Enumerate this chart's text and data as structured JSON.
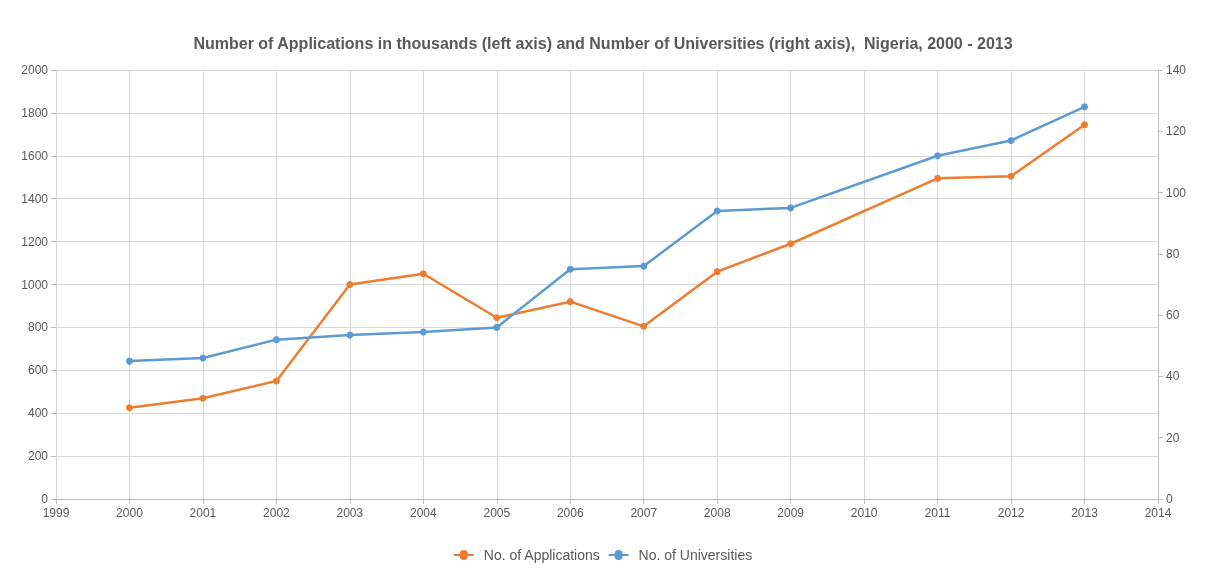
{
  "chart_data": {
    "type": "line",
    "title": "Number of Applications in thousands (left axis) and Number of Universities (right axis),  Nigeria, 2000 - 2013",
    "x": [
      2000,
      2001,
      2002,
      2003,
      2004,
      2005,
      2006,
      2007,
      2008,
      2009,
      2011,
      2012,
      2013
    ],
    "series": [
      {
        "name": "No. of Applications",
        "color": "#ed7d31",
        "values": [
          425,
          470,
          550,
          1000,
          1050,
          845,
          920,
          805,
          1060,
          1190,
          1495,
          1505,
          1745
        ]
      },
      {
        "name": "No. of Universities",
        "color": "#5b9bd5",
        "axis": "y2",
        "values": [
          45,
          46,
          52,
          53.5,
          54.5,
          56,
          75,
          76,
          94,
          95,
          112,
          117,
          128
        ]
      }
    ],
    "xlim": [
      1999,
      2014
    ],
    "xticks": [
      1999,
      2000,
      2001,
      2002,
      2003,
      2004,
      2005,
      2006,
      2007,
      2008,
      2009,
      2010,
      2011,
      2012,
      2013,
      2014
    ],
    "ylim": [
      0,
      2000
    ],
    "yticks": [
      0,
      200,
      400,
      600,
      800,
      1000,
      1200,
      1400,
      1600,
      1800,
      2000
    ],
    "y2lim": [
      0,
      140
    ],
    "y2ticks": [
      0,
      20,
      40,
      60,
      80,
      100,
      120,
      140
    ],
    "grid": true,
    "legend": "bottom",
    "marker": "circle",
    "line_style": "solid"
  }
}
